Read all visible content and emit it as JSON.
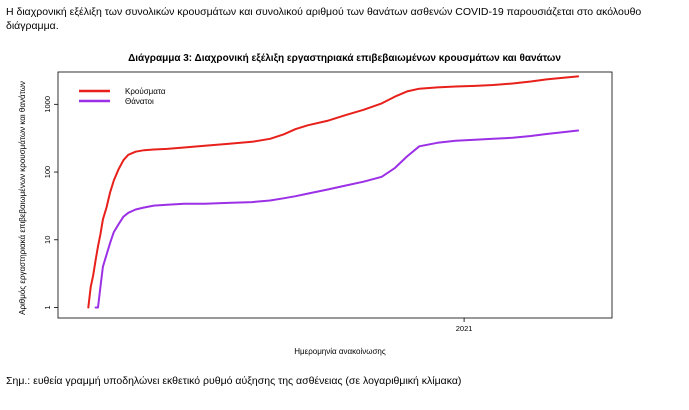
{
  "intro_text": "Η διαχρονική εξέλιξη των συνολικών κρουσμάτων και συνολικού αριθμού των θανάτων ασθενών COVID-19 παρουσιάζεται στο ακόλουθο διάγραμμα.",
  "note_text": "Σημ.: ευθεία γραμμή υποδηλώνει εκθετικό ρυθμό αύξησης της ασθένειας (σε λογαριθμική κλίμακα)",
  "chart_data": {
    "type": "line",
    "title": "Διάγραμμα 3: Διαχρονική εξέλιξη εργαστηριακά επιβεβαιωμένων κρουσμάτων και θανάτων",
    "xlabel": "Ημερομηνία ανακοίνωσης",
    "ylabel": "Αριθμός εργαστηριακά επιβεβαιωμένων κρουσμάτων και θανάτων",
    "yscale": "log",
    "x_tick_labels": [
      "2021"
    ],
    "y_tick_labels": [
      "1",
      "10",
      "100",
      "1000"
    ],
    "ylim": [
      1,
      3000
    ],
    "grid": false,
    "legend_position": "top-left",
    "x": [
      "2020-02-26",
      "2020-02-28",
      "2020-03-01",
      "2020-03-03",
      "2020-03-05",
      "2020-03-07",
      "2020-03-09",
      "2020-03-12",
      "2020-03-15",
      "2020-03-18",
      "2020-03-22",
      "2020-03-26",
      "2020-03-30",
      "2020-04-05",
      "2020-04-12",
      "2020-04-20",
      "2020-05-01",
      "2020-05-15",
      "2020-06-01",
      "2020-06-20",
      "2020-07-10",
      "2020-07-25",
      "2020-08-05",
      "2020-08-15",
      "2020-08-25",
      "2020-09-10",
      "2020-09-25",
      "2020-10-10",
      "2020-10-25",
      "2020-11-05",
      "2020-11-15",
      "2020-11-25",
      "2020-12-10",
      "2020-12-25",
      "2021-01-10",
      "2021-01-25",
      "2021-02-10",
      "2021-02-25",
      "2021-03-10",
      "2021-03-25",
      "2021-04-05"
    ],
    "series": [
      {
        "name": "Κρούσματα",
        "color": "#e8201b",
        "values": [
          1,
          2,
          3,
          5,
          8,
          12,
          20,
          30,
          50,
          75,
          110,
          150,
          180,
          200,
          210,
          215,
          220,
          230,
          245,
          260,
          280,
          310,
          360,
          430,
          490,
          570,
          690,
          830,
          1030,
          1300,
          1550,
          1700,
          1780,
          1830,
          1870,
          1930,
          2030,
          2170,
          2330,
          2480,
          2580
        ]
      },
      {
        "name": "Θάνατοι",
        "color": "#9b30e6",
        "values": [
          null,
          null,
          null,
          1,
          1,
          2,
          4,
          6,
          9,
          13,
          17,
          22,
          25,
          28,
          30,
          32,
          33,
          34,
          34,
          35,
          36,
          38,
          41,
          44,
          48,
          55,
          63,
          72,
          85,
          115,
          170,
          240,
          270,
          290,
          300,
          310,
          320,
          340,
          365,
          390,
          410
        ]
      }
    ]
  }
}
